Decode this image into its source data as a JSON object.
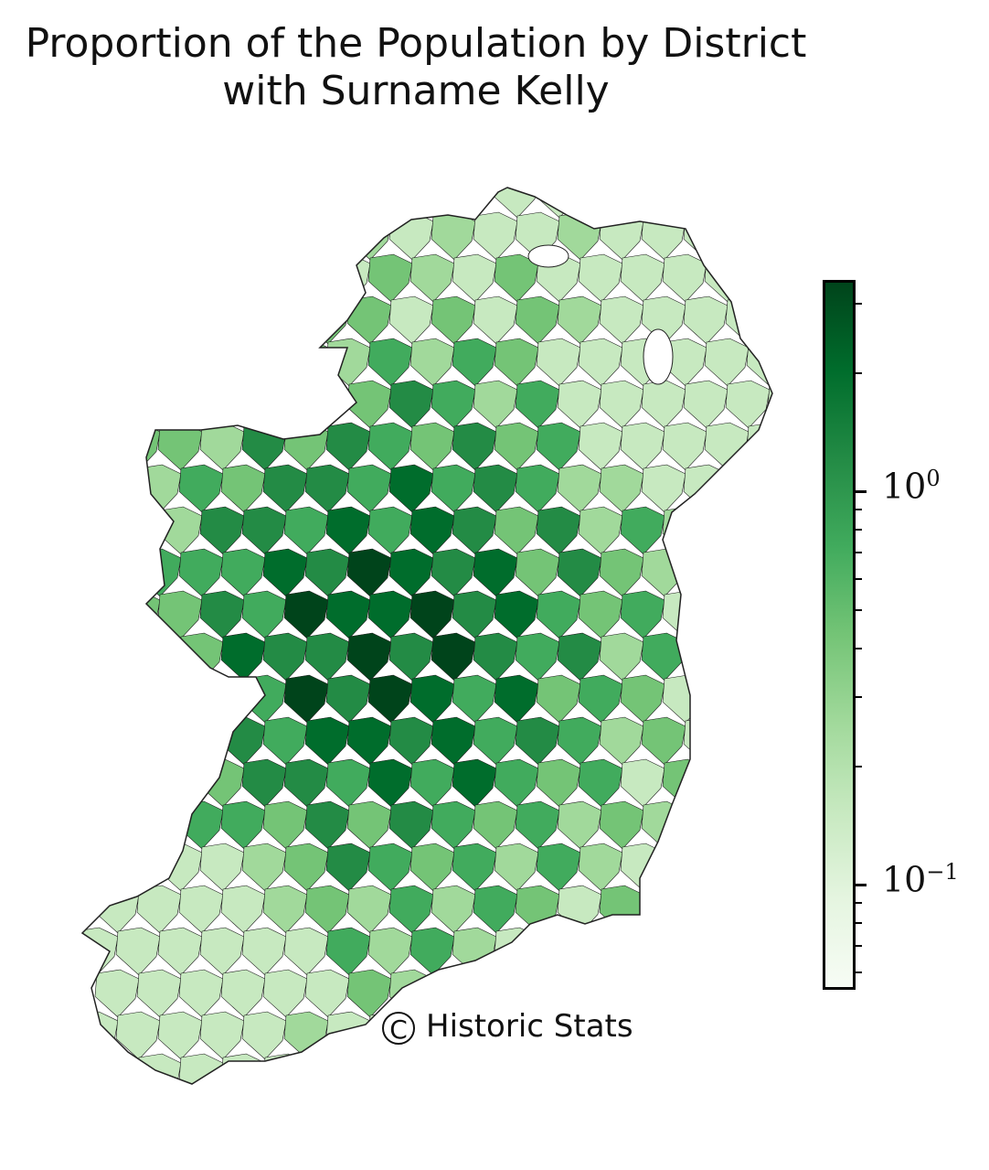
{
  "title_line1": "Proportion of the Population by District",
  "title_line2": "with Surname Kelly",
  "colorbar": {
    "scale": "log",
    "range": [
      0.055,
      3.4
    ],
    "colormap": "Greens",
    "colors": [
      "#f7fcf5",
      "#e5f5e0",
      "#c7e9c0",
      "#a1d99b",
      "#74c476",
      "#41ab5d",
      "#238b45",
      "#006d2c",
      "#00441b"
    ],
    "major_ticks": [
      {
        "base": "10",
        "exp": "0",
        "value": 1
      },
      {
        "base": "10",
        "exp": "−1",
        "value": 0.1
      }
    ]
  },
  "credit": {
    "symbol": "C",
    "text": "Historic Stats"
  },
  "map": {
    "region": "Ireland",
    "unit": "District",
    "fill_legend": "colorbar"
  }
}
